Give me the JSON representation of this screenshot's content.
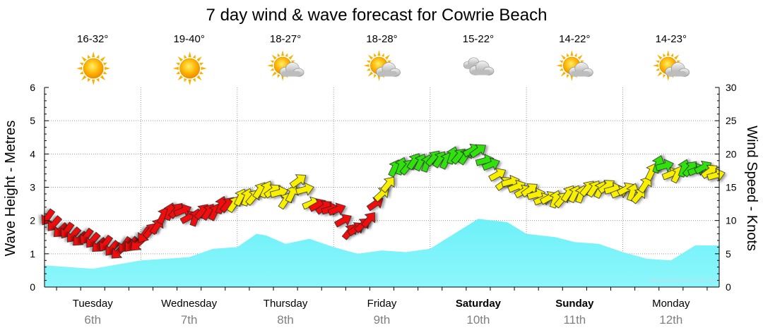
{
  "chart_data": {
    "type": "area",
    "title": "7 day wind & wave forecast for Cowrie Beach",
    "watermark": "www.seabreeze.com.au",
    "ylabel_left": "Wave Height - Metres",
    "ylabel_right": "Wind Speed - Knots",
    "ylim_left": [
      0,
      6
    ],
    "ylim_right": [
      0,
      30
    ],
    "yticks_left": [
      "0",
      "1",
      "2",
      "3",
      "4",
      "5",
      "6"
    ],
    "yticks_right": [
      "0",
      "5",
      "10",
      "15",
      "20",
      "25",
      "30"
    ],
    "grid": true,
    "days": [
      {
        "name": "Tuesday",
        "date": "6th",
        "temp": "16-32°",
        "weather_icon": "sun-icon",
        "bold": false
      },
      {
        "name": "Wednesday",
        "date": "7th",
        "temp": "19-40°",
        "weather_icon": "sun-icon",
        "bold": false
      },
      {
        "name": "Thursday",
        "date": "8th",
        "temp": "18-27°",
        "weather_icon": "sun-cloud-icon",
        "bold": false
      },
      {
        "name": "Friday",
        "date": "9th",
        "temp": "18-28°",
        "weather_icon": "sun-cloud-icon",
        "bold": false
      },
      {
        "name": "Saturday",
        "date": "10th",
        "temp": "15-22°",
        "weather_icon": "cloud-icon",
        "bold": true
      },
      {
        "name": "Sunday",
        "date": "11th",
        "temp": "14-22°",
        "weather_icon": "sun-cloud-icon",
        "bold": true
      },
      {
        "name": "Monday",
        "date": "12th",
        "temp": "14-23°",
        "weather_icon": "sun-cloud-icon",
        "bold": false
      }
    ],
    "wave_series": {
      "name": "Wave Height",
      "unit": "m",
      "color": "#7ff4fb",
      "x_days": [
        0,
        0.5,
        1,
        1.5,
        1.75,
        2,
        2.2,
        2.3,
        2.5,
        2.75,
        3,
        3.25,
        3.5,
        3.75,
        4,
        4.5,
        4.65,
        4.8,
        5,
        5.3,
        5.5,
        5.75,
        6,
        6.25,
        6.5,
        6.75,
        7
      ],
      "values": [
        0.65,
        0.55,
        0.8,
        0.9,
        1.15,
        1.2,
        1.6,
        1.55,
        1.3,
        1.45,
        1.2,
        1.0,
        1.1,
        1.05,
        1.15,
        2.05,
        2.0,
        1.95,
        1.6,
        1.5,
        1.35,
        1.3,
        1.05,
        0.85,
        0.8,
        1.25,
        1.25
      ]
    },
    "wind_series": {
      "name": "Wind Speed",
      "unit": "knots",
      "x_days": [
        0,
        0.25,
        0.5,
        0.75,
        1,
        1.2,
        1.35,
        1.5,
        1.75,
        2,
        2.2,
        2.35,
        2.5,
        2.65,
        2.8,
        3,
        3.2,
        3.35,
        3.5,
        3.65,
        3.8,
        4,
        4.25,
        4.5,
        4.75,
        5,
        5.25,
        5.5,
        5.75,
        6,
        6.2,
        6.35,
        6.5,
        6.75,
        7
      ],
      "values": [
        10.5,
        8,
        7,
        5.5,
        7,
        10,
        12,
        10.5,
        11.5,
        13,
        14,
        15,
        13,
        16,
        12,
        12,
        8,
        10,
        14,
        18,
        18.5,
        19,
        19.5,
        20.5,
        16,
        14.5,
        13,
        14,
        15,
        14.5,
        14,
        19,
        17,
        18,
        17
      ],
      "color_scale": {
        "low": "#f01010",
        "mid": "#f8f000",
        "high": "#30e010"
      }
    }
  }
}
